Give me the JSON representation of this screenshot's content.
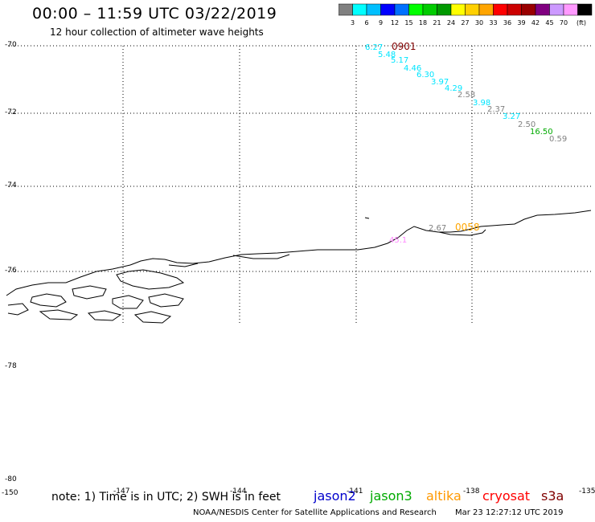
{
  "header": {
    "title": "00:00 – 11:59 UTC 03/22/2019",
    "subtitle": "12 hour collection of altimeter wave heights"
  },
  "colorbar": {
    "colors": [
      "#808080",
      "#00ffff",
      "#00bfff",
      "#0000ff",
      "#0070ff",
      "#00ff00",
      "#00cc00",
      "#009900",
      "#ffff00",
      "#ffd000",
      "#ffa500",
      "#ff0000",
      "#cc0000",
      "#990000",
      "#800080",
      "#cc99ff",
      "#ff99ff",
      "#000000"
    ],
    "labels": [
      "3",
      "6",
      "9",
      "12",
      "15",
      "18",
      "21",
      "24",
      "27",
      "30",
      "33",
      "36",
      "39",
      "42",
      "45",
      "70"
    ],
    "unit": "(ft)"
  },
  "lat_labels": [
    "-70",
    "-72",
    "-74",
    "-76",
    "-78",
    "-80"
  ],
  "lon_labels": [
    "-150",
    "-147",
    "-144",
    "-141",
    "-138",
    "-135"
  ],
  "observations": [
    {
      "text": "6.27",
      "color": "#00e5ff"
    },
    {
      "text": "0901",
      "color": "#800000"
    },
    {
      "text": "5.48",
      "color": "#00e5ff"
    },
    {
      "text": "5.17",
      "color": "#00e5ff"
    },
    {
      "text": "4.46",
      "color": "#00e5ff"
    },
    {
      "text": "6.30",
      "color": "#00e5ff"
    },
    {
      "text": "3.97",
      "color": "#00e5ff"
    },
    {
      "text": "4.29",
      "color": "#00e5ff"
    },
    {
      "text": "2.58",
      "color": "#808080"
    },
    {
      "text": "3.98",
      "color": "#00e5ff"
    },
    {
      "text": "2.37",
      "color": "#808080"
    },
    {
      "text": "3.27",
      "color": "#00e5ff"
    },
    {
      "text": "2.50",
      "color": "#808080"
    },
    {
      "text": "16.50",
      "color": "#00aa00"
    },
    {
      "text": "0.59",
      "color": "#808080"
    },
    {
      "text": "2.67",
      "color": "#808080"
    },
    {
      "text": "0058",
      "color": "#ffa500"
    },
    {
      "text": "45.1",
      "color": "#ff88ff"
    }
  ],
  "footer": {
    "note": "note: 1) Time is in UTC; 2) SWH is in feet",
    "satellites": [
      {
        "name": "jason2",
        "color": "#0000cc"
      },
      {
        "name": "jason3",
        "color": "#00aa00"
      },
      {
        "name": "altika",
        "color": "#ff9900"
      },
      {
        "name": "cryosat",
        "color": "#ff0000"
      },
      {
        "name": "s3a",
        "color": "#800000"
      }
    ],
    "credit": "NOAA/NESDIS Center for Satellite Applications and Research",
    "generated": "Mar 23 12:27:12 UTC 2019"
  }
}
